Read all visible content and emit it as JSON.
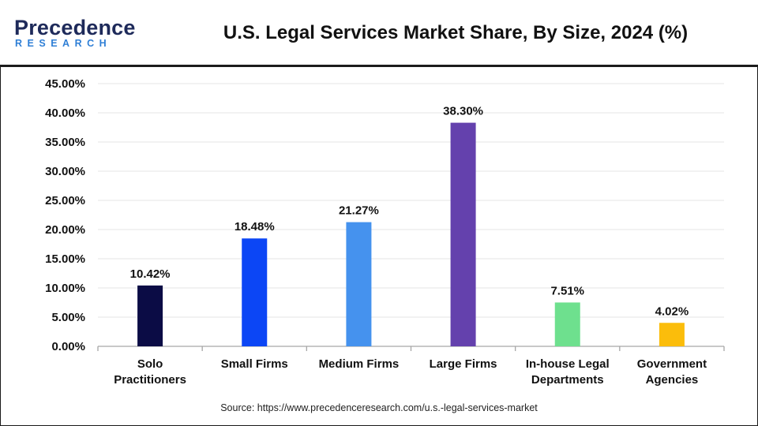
{
  "header": {
    "logo_main": "Precedence",
    "logo_sub": "RESEARCH",
    "title": "U.S. Legal Services Market Share, By Size, 2024 (%)"
  },
  "colors": {
    "logo_main": "#1e2a5a",
    "logo_sub": "#2f7fd6",
    "grid": "#e4e4e4",
    "axis": "#a6a6a6",
    "text": "#111111"
  },
  "chart_data": {
    "type": "bar",
    "title": "U.S. Legal Services Market Share, By Size, 2024 (%)",
    "xlabel": "",
    "ylabel": "",
    "ylim": [
      0,
      45
    ],
    "yticks": [
      0,
      5,
      10,
      15,
      20,
      25,
      30,
      35,
      40,
      45
    ],
    "ytick_labels": [
      "0.00%",
      "5.00%",
      "10.00%",
      "15.00%",
      "20.00%",
      "25.00%",
      "30.00%",
      "35.00%",
      "40.00%",
      "45.00%"
    ],
    "grid": true,
    "categories": [
      [
        "Solo",
        "Practitioners"
      ],
      [
        "Small Firms"
      ],
      [
        "Medium Firms"
      ],
      [
        "Large Firms"
      ],
      [
        "In-house Legal",
        "Departments"
      ],
      [
        "Government",
        "Agencies"
      ]
    ],
    "values": [
      10.42,
      18.48,
      21.27,
      38.3,
      7.51,
      4.02
    ],
    "value_labels": [
      "10.42%",
      "18.48%",
      "21.27%",
      "38.30%",
      "7.51%",
      "4.02%"
    ],
    "bar_colors": [
      "#0b0c45",
      "#0c46f5",
      "#4592ee",
      "#6441ad",
      "#6ee08e",
      "#fbbd0b"
    ]
  },
  "source": "Source: https://www.precedenceresearch.com/u.s.-legal-services-market"
}
